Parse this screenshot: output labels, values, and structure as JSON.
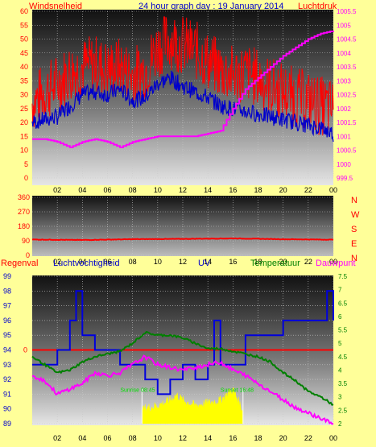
{
  "colors": {
    "background": "#ffff99",
    "wind_gust": "#ff0000",
    "wind_avg": "#0000cc",
    "pressure": "#ff00ff",
    "direction": "#ff0000",
    "humidity": "#0000dd",
    "temperature": "#008000",
    "dewpoint": "#ff00ff",
    "rain": "#ff0000",
    "uv": "#ffff00",
    "uv_label": "#00dd00"
  },
  "chart_data": [
    {
      "type": "line",
      "title": "24 hour graph day : 19 January 2014",
      "left_axis_label": "Windsnelheid",
      "right_axis_label": "Luchtdruk",
      "x_ticks": [
        "02",
        "04",
        "06",
        "08",
        "10",
        "12",
        "14",
        "16",
        "18",
        "20",
        "22",
        "00"
      ],
      "y_left": {
        "min": 0,
        "max": 60,
        "ticks": [
          "0",
          "5",
          "10",
          "15",
          "20",
          "25",
          "30",
          "35",
          "40",
          "45",
          "50",
          "55",
          "60"
        ]
      },
      "y_right": {
        "min": 999.5,
        "max": 1005.5,
        "ticks": [
          "999.5",
          "1000",
          "1000.5",
          "1001",
          "1001.5",
          "1002",
          "1002.5",
          "1003",
          "1003.5",
          "1004",
          "1004.5",
          "1005",
          "1005.5"
        ]
      },
      "grid": true,
      "series": [
        {
          "name": "Windsnelheid gust",
          "axis": "left",
          "color": "#ff0000",
          "x": [
            0,
            1,
            2,
            3,
            4,
            5,
            6,
            7,
            8,
            9,
            10,
            11,
            12,
            13,
            14,
            15,
            16,
            17,
            18,
            19,
            20,
            21,
            22,
            23,
            24
          ],
          "values": [
            27,
            31,
            34,
            38,
            40,
            41,
            39,
            40,
            37,
            39,
            47,
            50,
            48,
            46,
            42,
            39,
            37,
            38,
            36,
            33,
            31,
            29,
            28,
            26,
            25
          ]
        },
        {
          "name": "Windsnelheid avg",
          "axis": "left",
          "color": "#0000cc",
          "x": [
            0,
            1,
            2,
            3,
            4,
            5,
            6,
            7,
            8,
            9,
            10,
            11,
            12,
            13,
            14,
            15,
            16,
            17,
            18,
            19,
            20,
            21,
            22,
            23,
            24
          ],
          "values": [
            20,
            21,
            22,
            26,
            30,
            31,
            30,
            32,
            28,
            29,
            34,
            36,
            33,
            31,
            29,
            26,
            25,
            24,
            23,
            22,
            21,
            20,
            19,
            18,
            16
          ]
        },
        {
          "name": "Luchtdruk",
          "axis": "right",
          "color": "#ff00ff",
          "x": [
            0,
            1,
            2,
            3,
            4,
            5,
            6,
            7,
            8,
            9,
            10,
            11,
            12,
            13,
            14,
            15,
            16,
            17,
            18,
            19,
            20,
            21,
            22,
            23,
            24
          ],
          "values": [
            1000.9,
            1000.9,
            1000.8,
            1000.6,
            1000.8,
            1000.9,
            1000.8,
            1000.6,
            1000.8,
            1000.9,
            1001.0,
            1001.0,
            1001.0,
            1001.0,
            1001.1,
            1001.2,
            1002.0,
            1002.7,
            1003.1,
            1003.5,
            1003.9,
            1004.2,
            1004.5,
            1004.7,
            1004.8
          ]
        }
      ]
    },
    {
      "type": "line",
      "title": "",
      "x_ticks": [
        "02",
        "04",
        "06",
        "08",
        "10",
        "12",
        "14",
        "16",
        "18",
        "20",
        "22",
        "00"
      ],
      "y": {
        "min": 0,
        "max": 360,
        "ticks": [
          "0",
          "90",
          "180",
          "270",
          "360"
        ]
      },
      "right_labels": [
        "N",
        "W",
        "S",
        "E",
        "N"
      ],
      "grid": true,
      "series": [
        {
          "name": "",
          "color": "#ff0000",
          "x": [
            0,
            4,
            8,
            12,
            16,
            20,
            24
          ],
          "values": [
            98,
            95,
            100,
            102,
            105,
            100,
            97
          ]
        }
      ]
    },
    {
      "type": "line",
      "labels": {
        "rain": "Regenval",
        "humidity": "Luchtvochtigheid",
        "uv": "UV",
        "temperature": "Temperatuur",
        "dewpoint": "Dauwpunt"
      },
      "x_ticks": [
        "02",
        "04",
        "06",
        "08",
        "10",
        "12",
        "14",
        "16",
        "18",
        "20",
        "22",
        "00"
      ],
      "rain_tick": "0",
      "y_left": {
        "min": 89,
        "max": 99,
        "ticks": [
          "89",
          "90",
          "91",
          "92",
          "93",
          "94",
          "95",
          "96",
          "97",
          "98",
          "99"
        ]
      },
      "y_right": {
        "min": 2,
        "max": 7.5,
        "ticks": [
          "2",
          "2.5",
          "3",
          "3.5",
          "4",
          "4.5",
          "5",
          "5.5",
          "6",
          "6.5",
          "7",
          "7.5"
        ]
      },
      "uv_annotations": [
        "Sunrise 08:45",
        "Sunset 16:48"
      ],
      "grid": true,
      "series": [
        {
          "name": "Luchtvochtigheid",
          "axis": "left",
          "color": "#0000dd",
          "x": [
            0,
            1,
            2,
            3,
            3.5,
            4,
            5,
            6,
            7,
            8,
            8.5,
            9,
            10,
            11,
            12,
            13,
            14,
            14.5,
            15,
            16,
            17,
            18,
            19,
            20,
            21,
            22,
            23,
            23.5,
            24
          ],
          "values": [
            93,
            93,
            94,
            96,
            98,
            95,
            94,
            94,
            93,
            93,
            93,
            92,
            91,
            92,
            93,
            92,
            93,
            96,
            93,
            93,
            95,
            95,
            95,
            96,
            96,
            96,
            96,
            98,
            96
          ]
        },
        {
          "name": "Temperatuur",
          "axis": "right",
          "color": "#008000",
          "x": [
            0,
            1,
            2,
            3,
            4,
            5,
            6,
            7,
            8,
            9,
            10,
            11,
            12,
            13,
            14,
            15,
            16,
            17,
            18,
            19,
            20,
            21,
            22,
            23,
            24
          ],
          "values": [
            4.5,
            4.2,
            3.9,
            4.0,
            4.3,
            4.5,
            4.6,
            4.7,
            5.0,
            5.4,
            5.3,
            5.3,
            5.2,
            5.0,
            4.8,
            4.8,
            4.7,
            4.6,
            4.5,
            4.3,
            3.9,
            3.6,
            3.2,
            3.0,
            2.7
          ]
        },
        {
          "name": "Dauwpunt",
          "axis": "right",
          "color": "#ff00ff",
          "x": [
            0,
            1,
            2,
            3,
            4,
            5,
            6,
            7,
            8,
            9,
            10,
            11,
            12,
            13,
            14,
            15,
            16,
            17,
            18,
            19,
            20,
            21,
            22,
            23,
            24
          ],
          "values": [
            3.8,
            3.6,
            3.1,
            3.3,
            3.5,
            3.9,
            3.8,
            3.9,
            4.2,
            4.5,
            4.2,
            4.1,
            4.0,
            4.1,
            4.2,
            4.3,
            4.0,
            3.8,
            3.5,
            3.2,
            2.9,
            2.6,
            2.4,
            2.2,
            2.0
          ]
        },
        {
          "name": "UV",
          "axis": "right",
          "color": "#ffff00",
          "type": "area",
          "x": [
            8.75,
            9,
            10,
            11,
            11.5,
            12,
            13,
            14,
            15,
            16,
            16.8
          ],
          "values": [
            2.4,
            2.5,
            2.6,
            2.8,
            3.0,
            2.8,
            2.6,
            2.7,
            2.8,
            3.2,
            2.4
          ]
        },
        {
          "name": "Regenval",
          "axis": "rain",
          "color": "#ff0000",
          "x": [
            0,
            24
          ],
          "values": [
            0,
            0
          ]
        }
      ]
    }
  ]
}
